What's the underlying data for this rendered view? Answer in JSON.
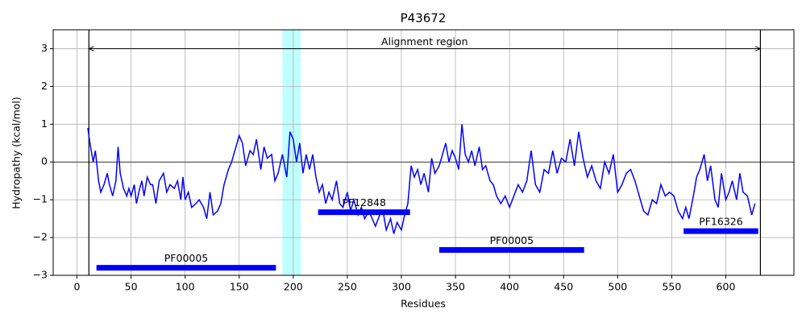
{
  "chart_data": {
    "type": "line",
    "title": "P43672",
    "xlabel": "Residues",
    "ylabel": "Hydropathy (kcal/mol)",
    "x": [
      10,
      12,
      15,
      17,
      20,
      22,
      25,
      28,
      30,
      33,
      36,
      38,
      40,
      43,
      46,
      48,
      50,
      53,
      55,
      58,
      60,
      62,
      65,
      68,
      70,
      73,
      76,
      80,
      83,
      86,
      90,
      93,
      96,
      98,
      100,
      103,
      106,
      110,
      113,
      117,
      120,
      123,
      126,
      130,
      133,
      136,
      140,
      143,
      146,
      150,
      153,
      156,
      160,
      163,
      166,
      170,
      173,
      176,
      180,
      183,
      186,
      190,
      194,
      197,
      200,
      203,
      206,
      209,
      212,
      215,
      218,
      221,
      224,
      227,
      230,
      233,
      236,
      240,
      243,
      246,
      250,
      253,
      256,
      260,
      263,
      266,
      270,
      273,
      276,
      280,
      283,
      286,
      290,
      293,
      296,
      300,
      303,
      306,
      309,
      312,
      315,
      318,
      321,
      325,
      328,
      331,
      335,
      338,
      341,
      344,
      347,
      350,
      353,
      356,
      359,
      362,
      365,
      368,
      372,
      375,
      378,
      382,
      385,
      388,
      392,
      396,
      400,
      404,
      408,
      412,
      416,
      420,
      424,
      428,
      432,
      436,
      440,
      444,
      448,
      452,
      456,
      460,
      464,
      468,
      472,
      476,
      480,
      484,
      488,
      492,
      496,
      500,
      504,
      508,
      512,
      516,
      520,
      524,
      528,
      532,
      536,
      540,
      544,
      548,
      552,
      556,
      560,
      563,
      566,
      570,
      573,
      576,
      580,
      583,
      586,
      590,
      593,
      596,
      600,
      603,
      606,
      610,
      613,
      616,
      620,
      624,
      627
    ],
    "values": [
      0.9,
      0.5,
      0.0,
      0.3,
      -0.5,
      -0.8,
      -0.6,
      -0.3,
      -0.6,
      -0.9,
      -0.5,
      0.4,
      -0.3,
      -0.7,
      -0.9,
      -0.7,
      -0.9,
      -0.6,
      -1.1,
      -0.7,
      -0.5,
      -0.9,
      -0.4,
      -0.6,
      -0.6,
      -1.1,
      -0.5,
      -0.3,
      -0.8,
      -0.6,
      -0.7,
      -0.5,
      -1.0,
      -0.4,
      -1.0,
      -0.8,
      -1.2,
      -1.1,
      -1.0,
      -1.2,
      -1.5,
      -0.8,
      -1.4,
      -1.3,
      -1.1,
      -0.6,
      -0.2,
      0.0,
      0.3,
      0.7,
      0.5,
      -0.1,
      0.3,
      0.2,
      0.6,
      -0.2,
      0.4,
      0.1,
      0.2,
      -0.5,
      -0.3,
      0.2,
      -0.4,
      0.8,
      0.6,
      0.0,
      0.5,
      -0.3,
      0.2,
      -0.2,
      0.2,
      -0.4,
      -0.8,
      -0.6,
      -1.1,
      -0.8,
      -1.0,
      -0.5,
      -1.1,
      -1.2,
      -0.8,
      -1.3,
      -1.0,
      -1.4,
      -1.2,
      -1.5,
      -1.3,
      -1.5,
      -1.7,
      -1.4,
      -1.3,
      -1.8,
      -1.5,
      -1.9,
      -1.6,
      -1.8,
      -1.4,
      -1.1,
      -0.1,
      -0.4,
      -0.2,
      -0.6,
      -0.3,
      -0.8,
      0.1,
      -0.3,
      -0.1,
      0.2,
      0.5,
      0.0,
      0.3,
      0.1,
      -0.2,
      1.0,
      0.2,
      0.0,
      0.3,
      -0.1,
      0.4,
      -0.2,
      -0.1,
      -0.5,
      -0.6,
      -0.9,
      -1.1,
      -0.9,
      -1.2,
      -0.9,
      -0.6,
      -0.8,
      -0.5,
      0.3,
      -0.6,
      -0.8,
      -0.2,
      -0.3,
      0.3,
      -0.3,
      0.1,
      0.0,
      0.6,
      -0.1,
      0.8,
      0.1,
      -0.4,
      -0.1,
      -0.5,
      -0.7,
      0.0,
      -0.3,
      0.2,
      -0.8,
      -0.6,
      -0.3,
      -0.2,
      -0.5,
      -0.9,
      -1.3,
      -1.4,
      -1.0,
      -1.1,
      -0.6,
      -0.9,
      -0.8,
      -0.9,
      -1.3,
      -1.5,
      -1.2,
      -1.5,
      -0.9,
      -0.4,
      -0.2,
      0.2,
      -0.5,
      -0.1,
      -1.0,
      -1.2,
      -0.3,
      -1.0,
      -0.8,
      -0.5,
      -1.0,
      -0.3,
      -0.8,
      -0.9,
      -1.4,
      -1.1
    ],
    "color": "#0000ff",
    "xlim": [
      -22,
      663
    ],
    "ylim": [
      -3,
      3.5
    ],
    "xticks": [
      0,
      50,
      100,
      150,
      200,
      250,
      300,
      350,
      400,
      450,
      500,
      550,
      600
    ],
    "yticks": [
      {
        "value": -3,
        "label": "−3"
      },
      {
        "value": -2,
        "label": "−2"
      },
      {
        "value": -1,
        "label": "−1"
      },
      0,
      1,
      2,
      3
    ],
    "grid": true,
    "hline": 0,
    "vlines": [
      11,
      632
    ],
    "span": [
      190,
      207
    ],
    "span_color": "#00ffff",
    "arrow": {
      "label": "Alignment region",
      "from": 11,
      "to": 632,
      "y": 3
    },
    "domain_color": "#0000ff",
    "domains": [
      {
        "label": "PF00005",
        "start": 18,
        "end": 184,
        "y": -2.8
      },
      {
        "label": "PF12848",
        "start": 223,
        "end": 308,
        "y": -1.33
      },
      {
        "label": "PF00005",
        "start": 335,
        "end": 469,
        "y": -2.33
      },
      {
        "label": "PF16326",
        "start": 561,
        "end": 630,
        "y": -1.83
      }
    ]
  }
}
